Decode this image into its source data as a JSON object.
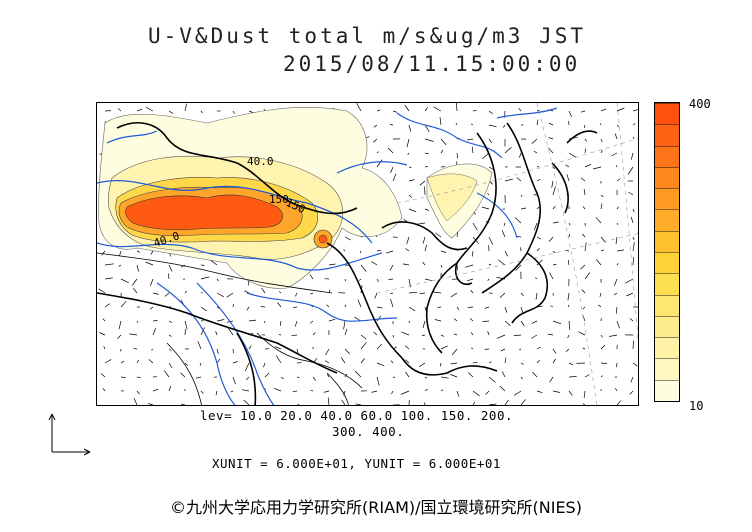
{
  "title_line1": "U-V&Dust total m/s&ug/m3 JST",
  "title_line2": "2015/08/11.15:00:00",
  "colorbar": {
    "max_label": "400",
    "min_label": "10",
    "colors": [
      "#fffde0",
      "#fff7c0",
      "#fff1a6",
      "#ffec8c",
      "#ffe670",
      "#ffdf52",
      "#ffd23c",
      "#ffc030",
      "#ffac28",
      "#ff9a22",
      "#ff881e",
      "#ff7418",
      "#ff6214",
      "#ff5010"
    ]
  },
  "levels_line1": "lev= 10.0 20.0 40.0 60.0 100. 150. 200.",
  "levels_line2": "300. 400.",
  "units_line": "XUNIT = 6.000E+01, YUNIT = 6.000E+01",
  "credit": "©九州大学応用力学研究所(RIAM)/国立環境研究所(NIES)",
  "contour_labels": [
    "40.0",
    "150",
    "40.0",
    "150"
  ],
  "legend_arrow": {
    "xunit": 60,
    "yunit": 60
  }
}
